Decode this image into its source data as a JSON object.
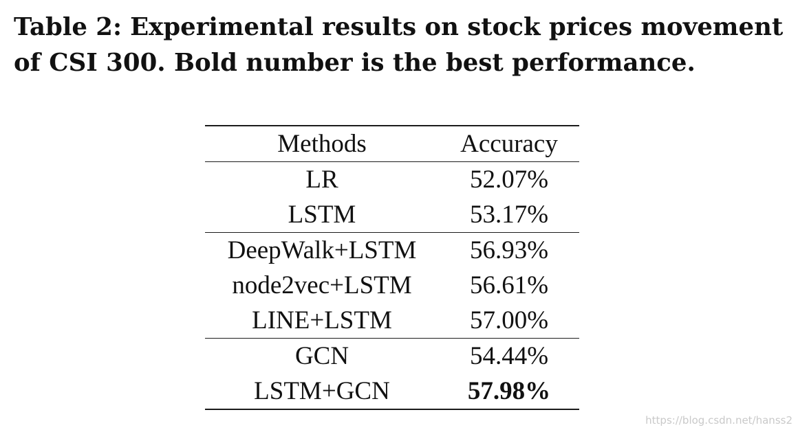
{
  "caption": {
    "label": "Table 2:",
    "text": "Experimental results on stock prices movement of CSI 300. Bold number is the best performance."
  },
  "table": {
    "headers": {
      "methods": "Methods",
      "accuracy": "Accuracy"
    },
    "rows": [
      {
        "method": "LR",
        "accuracy": "52.07%",
        "group": 1,
        "best": false
      },
      {
        "method": "LSTM",
        "accuracy": "53.17%",
        "group": 1,
        "best": false
      },
      {
        "method": "DeepWalk+LSTM",
        "accuracy": "56.93%",
        "group": 2,
        "best": false
      },
      {
        "method": "node2vec+LSTM",
        "accuracy": "56.61%",
        "group": 2,
        "best": false
      },
      {
        "method": "LINE+LSTM",
        "accuracy": "57.00%",
        "group": 2,
        "best": false
      },
      {
        "method": "GCN",
        "accuracy": "54.44%",
        "group": 3,
        "best": false
      },
      {
        "method": "LSTM+GCN",
        "accuracy": "57.98%",
        "group": 3,
        "best": true
      }
    ]
  },
  "watermark": "https://blog.csdn.net/hanss2"
}
